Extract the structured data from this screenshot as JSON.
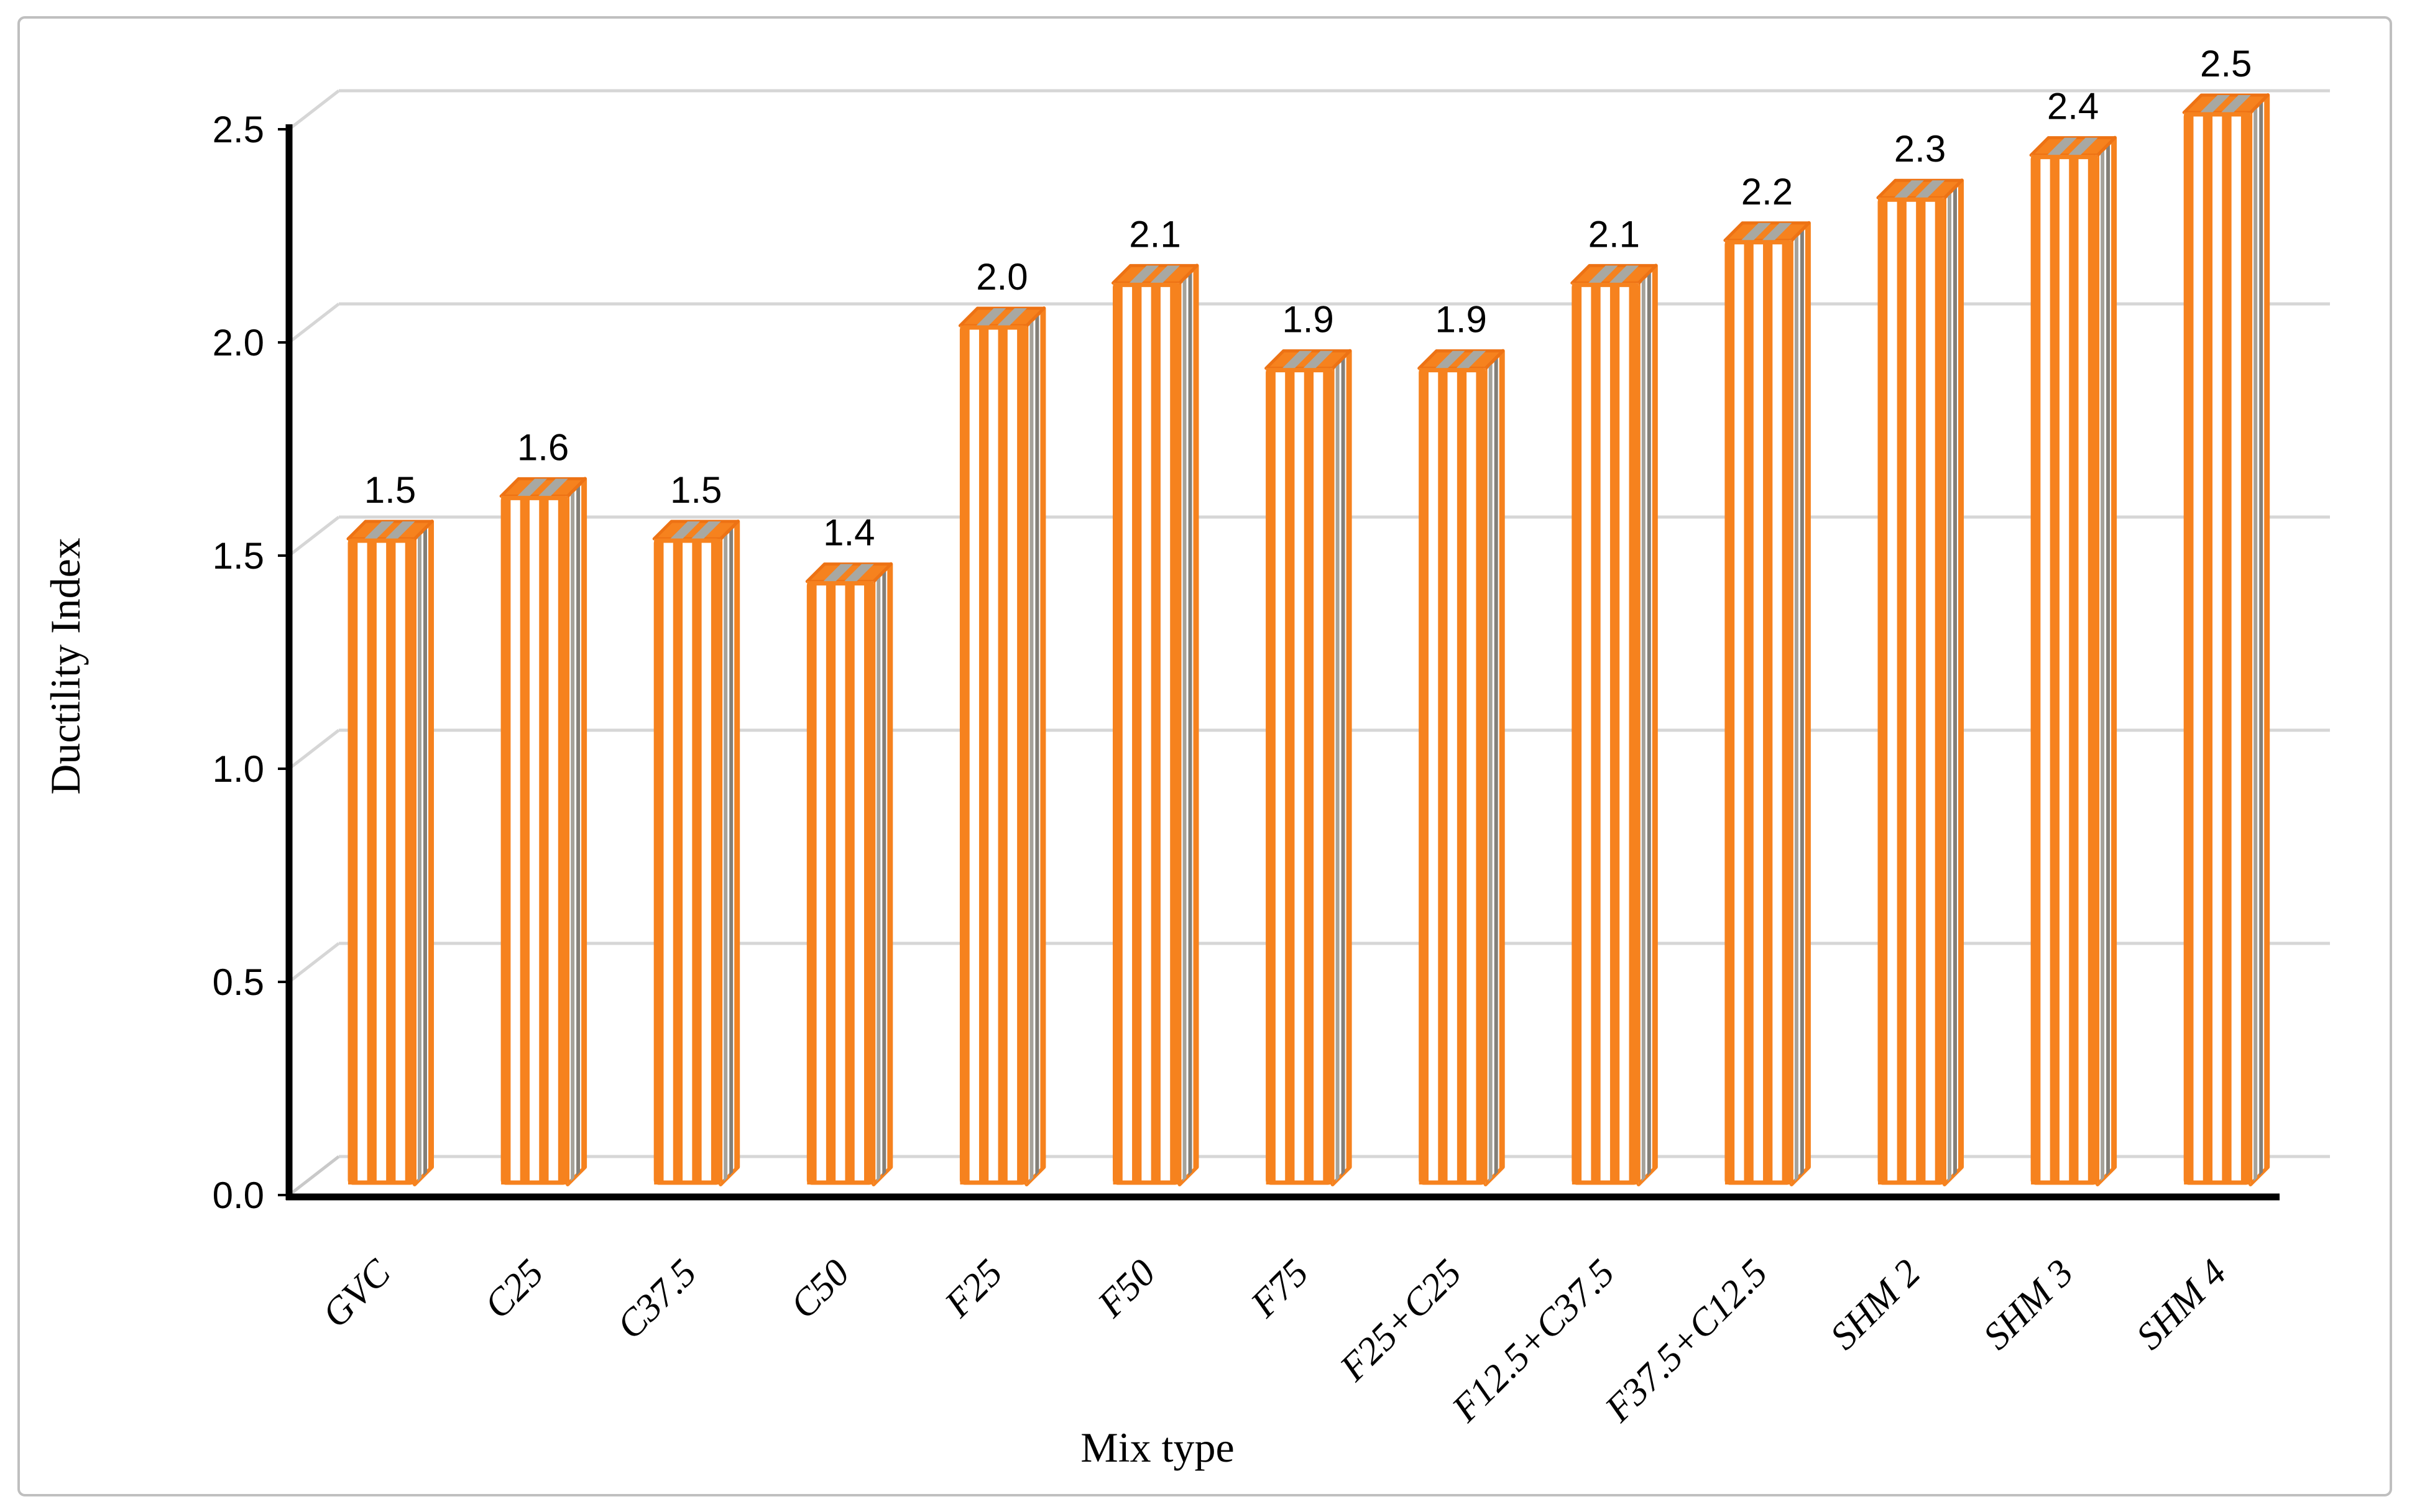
{
  "chart_data": {
    "type": "bar",
    "style": "3d-column-striped",
    "title": "",
    "xlabel": "Mix type",
    "ylabel": "Ductility Index",
    "categories": [
      "GVC",
      "C25",
      "C37.5",
      "C50",
      "F25",
      "F50",
      "F75",
      "F25+C25",
      "F12.5+C37.5",
      "F37.5+C12.5",
      "SHM 2",
      "SHM 3",
      "SHM 4"
    ],
    "values": [
      1.5,
      1.6,
      1.5,
      1.4,
      2.0,
      2.1,
      1.9,
      1.9,
      2.1,
      2.2,
      2.3,
      2.4,
      2.5
    ],
    "bar_labels": [
      "1.5",
      "1.6",
      "1.5",
      "1.4",
      "2.0",
      "2.1",
      "1.9",
      "1.9",
      "2.1",
      "2.2",
      "2.3",
      "2.4",
      "2.5"
    ],
    "ylim": [
      0.0,
      2.5
    ],
    "ytick_step": 0.5,
    "yticks": [
      "0.0",
      "0.5",
      "1.0",
      "1.5",
      "2.0",
      "2.5"
    ],
    "grid": true,
    "legend": "none",
    "colors": {
      "bar_orange": "#F6821E",
      "bar_orange_dark": "#ED7214",
      "bar_white": "#FFFFFF",
      "side_gray_light": "#A5A29A",
      "side_gray_dark": "#837F78",
      "top_gray": "#A8A8A2",
      "gridline": "#D6D6D6",
      "floor_diag": "#C9C9C9",
      "axis": "#000000",
      "label_text": "#000000",
      "frame_border": "#BFBFBF",
      "background": "#FFFFFF"
    }
  }
}
